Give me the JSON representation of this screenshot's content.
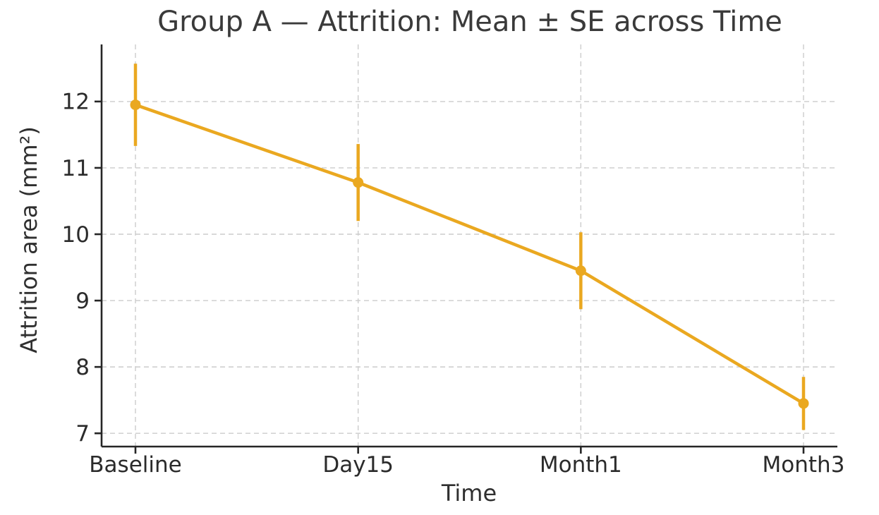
{
  "chart_data": {
    "type": "line",
    "title": "Group A — Attrition: Mean ± SE across Time",
    "xlabel": "Time",
    "ylabel": "Attrition area (mm²)",
    "categories": [
      "Baseline",
      "Day15",
      "Month1",
      "Month3"
    ],
    "series": [
      {
        "name": "Group A mean ± SE",
        "values": [
          11.95,
          10.78,
          9.45,
          7.45
        ],
        "se": [
          0.62,
          0.58,
          0.58,
          0.4
        ],
        "color": "#EAA820"
      }
    ],
    "yticks": [
      7,
      8,
      9,
      10,
      11,
      12
    ],
    "ylim": [
      6.8,
      12.86
    ],
    "grid": true,
    "grid_style": "dashed",
    "legend_position": "none",
    "marker": "circle",
    "error_bar_caps": false
  },
  "colors": {
    "background": "#ffffff",
    "gridline": "#cccccc",
    "spine": "#262626",
    "tick_label": "#2b2b2b",
    "title_text": "#3a3a3a",
    "series": "#EAA820"
  }
}
